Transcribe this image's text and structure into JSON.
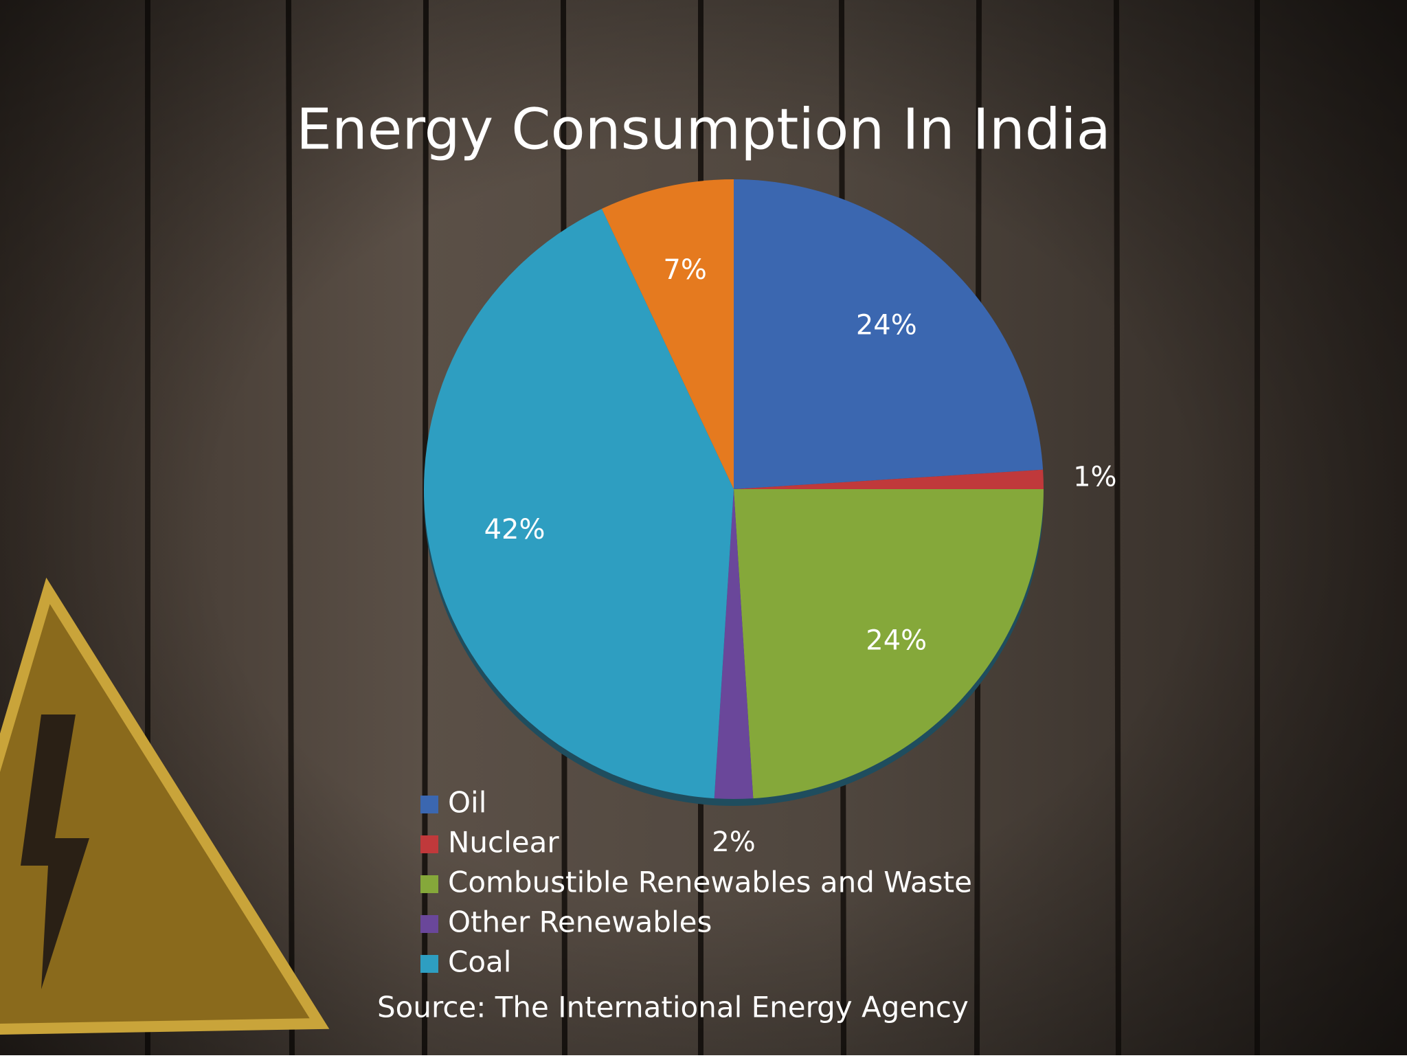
{
  "chart_data": {
    "type": "pie",
    "title": "Energy Consumption In India",
    "categories": [
      "Oil",
      "Nuclear",
      "Combustible Renewables and Waste",
      "Other Renewables",
      "Coal",
      null
    ],
    "values": [
      24,
      1,
      24,
      2,
      42,
      7
    ],
    "value_labels": [
      "24%",
      "1%",
      "24%",
      "2%",
      "42%",
      "7%"
    ],
    "colors": [
      "#3b67b0",
      "#c0393b",
      "#85a83a",
      "#6a479a",
      "#2e9ec1",
      "#e57a1f"
    ],
    "source": "Source: The International Energy Agency"
  }
}
